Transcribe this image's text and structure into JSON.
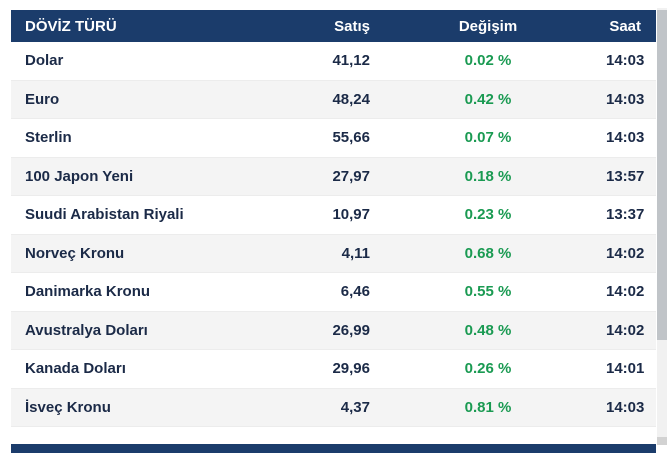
{
  "header": {
    "columns": [
      "DÖVİZ TÜRÜ",
      "Satış",
      "Değişim",
      "Saat"
    ]
  },
  "rows": [
    {
      "name": "Dolar",
      "satis": "41,12",
      "degisim": "0.02 %",
      "saat": "14:03"
    },
    {
      "name": "Euro",
      "satis": "48,24",
      "degisim": "0.42 %",
      "saat": "14:03"
    },
    {
      "name": "Sterlin",
      "satis": "55,66",
      "degisim": "0.07 %",
      "saat": "14:03"
    },
    {
      "name": "100 Japon Yeni",
      "satis": "27,97",
      "degisim": "0.18 %",
      "saat": "13:57"
    },
    {
      "name": "Suudi Arabistan Riyali",
      "satis": "10,97",
      "degisim": "0.23 %",
      "saat": "13:37"
    },
    {
      "name": "Norveç Kronu",
      "satis": "4,11",
      "degisim": "0.68 %",
      "saat": "14:02"
    },
    {
      "name": "Danimarka Kronu",
      "satis": "6,46",
      "degisim": "0.55 %",
      "saat": "14:02"
    },
    {
      "name": "Avustralya Doları",
      "satis": "26,99",
      "degisim": "0.48 %",
      "saat": "14:02"
    },
    {
      "name": "Kanada Doları",
      "satis": "29,96",
      "degisim": "0.26 %",
      "saat": "14:01"
    },
    {
      "name": "İsveç Kronu",
      "satis": "4,37",
      "degisim": "0.81 %",
      "saat": "14:03"
    }
  ],
  "colors": {
    "header_bg": "#1b3c6b",
    "positive_green": "#1a9a52",
    "row_alt_bg": "#f4f4f4",
    "text_navy": "#1b2a47",
    "scrollbar_thumb": "#c0c4c8",
    "scrollbar_track": "#f1f1f1"
  }
}
